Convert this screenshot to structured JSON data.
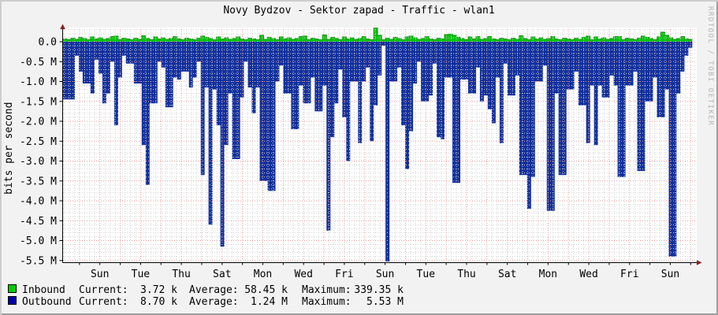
{
  "title": "Novy Bydzov - Sektor zapad - Traffic - wlan1",
  "watermark": "RRDTOOL / TOBI OETIKER",
  "colors": {
    "background": "#f2f2f2",
    "canvas": "#ffffff",
    "inbound_area": "#00c30c",
    "inbound_line": "#009a00",
    "outbound_area": "#12309e",
    "inbound_swatch": "#00cc00",
    "outbound_swatch": "#0000aa",
    "grid_major": "#eb9a9a",
    "grid_minor": "#d2d2d2",
    "axis": "#000000",
    "arrow": "#8a1f1f",
    "text": "#000000",
    "watermark_text": "#b4b4b4"
  },
  "chart_data": {
    "type": "area",
    "title": "Novy Bydzov - Sektor zapad - Traffic - wlan1",
    "ylabel": "bits per second",
    "value_unit": "Mbit/s",
    "grid": true,
    "legend_position": "bottom",
    "ylim": [
      -5.5,
      0.4
    ],
    "x_span_days": 31,
    "x_label_interval_days": 2,
    "x_tick_labels": [
      "Sun",
      "Tue",
      "Thu",
      "Sat",
      "Mon",
      "Wed",
      "Fri",
      "Sun",
      "Tue",
      "Thu",
      "Sat",
      "Mon",
      "Wed",
      "Fri",
      "Sun"
    ],
    "y_tick_labels": [
      "0.0",
      "-0.5 M",
      "-1.0 M",
      "-1.5 M",
      "-2.0 M",
      "-2.5 M",
      "-3.0 M",
      "-3.5 M",
      "-4.0 M",
      "-4.5 M",
      "-5.0 M",
      "-5.5 M"
    ],
    "y_tick_values": [
      0,
      -0.5,
      -1.0,
      -1.5,
      -2.0,
      -2.5,
      -3.0,
      -3.5,
      -4.0,
      -4.5,
      -5.0,
      -5.5
    ],
    "series": [
      {
        "name": "Inbound",
        "color": "#00c30c",
        "values": [
          0.07,
          0.05,
          0.09,
          0.06,
          0.11,
          0.08,
          0.05,
          0.12,
          0.07,
          0.1,
          0.06,
          0.08,
          0.13,
          0.14,
          0.05,
          0.09,
          0.07,
          0.05,
          0.09,
          0.06,
          0.15,
          0.08,
          0.05,
          0.12,
          0.07,
          0.1,
          0.06,
          0.08,
          0.13,
          0.07,
          0.05,
          0.09,
          0.07,
          0.05,
          0.09,
          0.14,
          0.11,
          0.08,
          0.05,
          0.12,
          0.07,
          0.1,
          0.06,
          0.08,
          0.12,
          0.07,
          0.05,
          0.09,
          0.07,
          0.05,
          0.16,
          0.06,
          0.11,
          0.08,
          0.05,
          0.12,
          0.07,
          0.1,
          0.06,
          0.08,
          0.13,
          0.14,
          0.05,
          0.09,
          0.07,
          0.05,
          0.17,
          0.06,
          0.11,
          0.08,
          0.05,
          0.12,
          0.07,
          0.1,
          0.06,
          0.08,
          0.13,
          0.07,
          0.05,
          0.34,
          0.16,
          0.05,
          0.09,
          0.06,
          0.11,
          0.08,
          0.05,
          0.12,
          0.14,
          0.1,
          0.06,
          0.08,
          0.13,
          0.07,
          0.05,
          0.09,
          0.07,
          0.18,
          0.19,
          0.16,
          0.11,
          0.08,
          0.05,
          0.12,
          0.07,
          0.13,
          0.06,
          0.08,
          0.13,
          0.07,
          0.05,
          0.09,
          0.07,
          0.05,
          0.09,
          0.06,
          0.15,
          0.08,
          0.05,
          0.12,
          0.07,
          0.1,
          0.06,
          0.08,
          0.13,
          0.07,
          0.05,
          0.09,
          0.07,
          0.05,
          0.09,
          0.06,
          0.11,
          0.14,
          0.05,
          0.12,
          0.07,
          0.1,
          0.06,
          0.08,
          0.13,
          0.13,
          0.05,
          0.09,
          0.07,
          0.05,
          0.09,
          0.14,
          0.11,
          0.08,
          0.05,
          0.12,
          0.24,
          0.16,
          0.1,
          0.06,
          0.08,
          0.13,
          0.07,
          0.06
        ]
      },
      {
        "name": "Outbound",
        "color": "#12309e",
        "values": [
          -1.45,
          -1.45,
          -1.45,
          -0.35,
          -0.75,
          -1.05,
          -1.05,
          -1.3,
          -0.45,
          -0.8,
          -1.55,
          -1.3,
          -0.5,
          -2.1,
          -0.9,
          -0.35,
          -0.55,
          -0.55,
          -1.05,
          -1.05,
          -2.6,
          -3.6,
          -1.55,
          -1.55,
          -0.5,
          -0.65,
          -1.65,
          -1.65,
          -0.9,
          -0.95,
          -0.75,
          -0.75,
          -1.15,
          -0.9,
          -0.5,
          -3.35,
          -1.15,
          -4.6,
          -1.2,
          -2.1,
          -5.15,
          -2.6,
          -1.3,
          -2.95,
          -2.95,
          -1.4,
          -0.5,
          -1.15,
          -1.8,
          -1.15,
          -3.5,
          -3.5,
          -3.75,
          -3.75,
          -1.0,
          -0.6,
          -1.3,
          -1.3,
          -2.2,
          -2.2,
          -1.1,
          -1.55,
          -1.55,
          -0.9,
          -1.75,
          -1.75,
          -1.1,
          -4.75,
          -2.4,
          -1.55,
          -0.7,
          -1.9,
          -3.0,
          -1.0,
          -1.0,
          -2.55,
          -1.0,
          -0.65,
          -2.5,
          -1.6,
          -0.85,
          -0.1,
          -5.6,
          -1.0,
          -1.0,
          -0.65,
          -2.1,
          -3.2,
          -2.25,
          -1.05,
          -0.5,
          -1.5,
          -1.5,
          -1.35,
          -0.55,
          -2.4,
          -2.45,
          -0.9,
          -0.9,
          -3.55,
          -3.55,
          -0.95,
          -0.95,
          -1.3,
          -1.3,
          -0.65,
          -1.5,
          -1.35,
          -1.7,
          -2.05,
          -0.9,
          -2.55,
          -0.55,
          -1.35,
          -1.35,
          -0.85,
          -3.35,
          -3.35,
          -4.2,
          -3.4,
          -1.0,
          -1.0,
          -0.6,
          -4.25,
          -4.25,
          -1.3,
          -3.35,
          -3.35,
          -1.2,
          -1.2,
          -0.75,
          -1.6,
          -1.6,
          -2.55,
          -1.1,
          -2.6,
          -1.1,
          -1.4,
          -1.4,
          -0.85,
          -1.1,
          -3.4,
          -3.4,
          -1.1,
          -1.1,
          -0.75,
          -3.25,
          -3.25,
          -1.5,
          -1.5,
          -0.9,
          -1.9,
          -1.9,
          -1.2,
          -5.4,
          -5.4,
          -1.3,
          -0.75,
          -0.35,
          -0.15
        ]
      }
    ]
  },
  "legend": {
    "cols": [
      "Current:",
      "Average:",
      "Maximum:"
    ],
    "rows": [
      {
        "name": "Inbound",
        "swatch": "#00cc00",
        "current": "3.72 k",
        "average": "58.45 k",
        "maximum": "339.35 k"
      },
      {
        "name": "Outbound",
        "swatch": "#0000aa",
        "current": "8.70 k",
        "average": "1.24 M",
        "maximum": "5.53 M"
      }
    ]
  }
}
